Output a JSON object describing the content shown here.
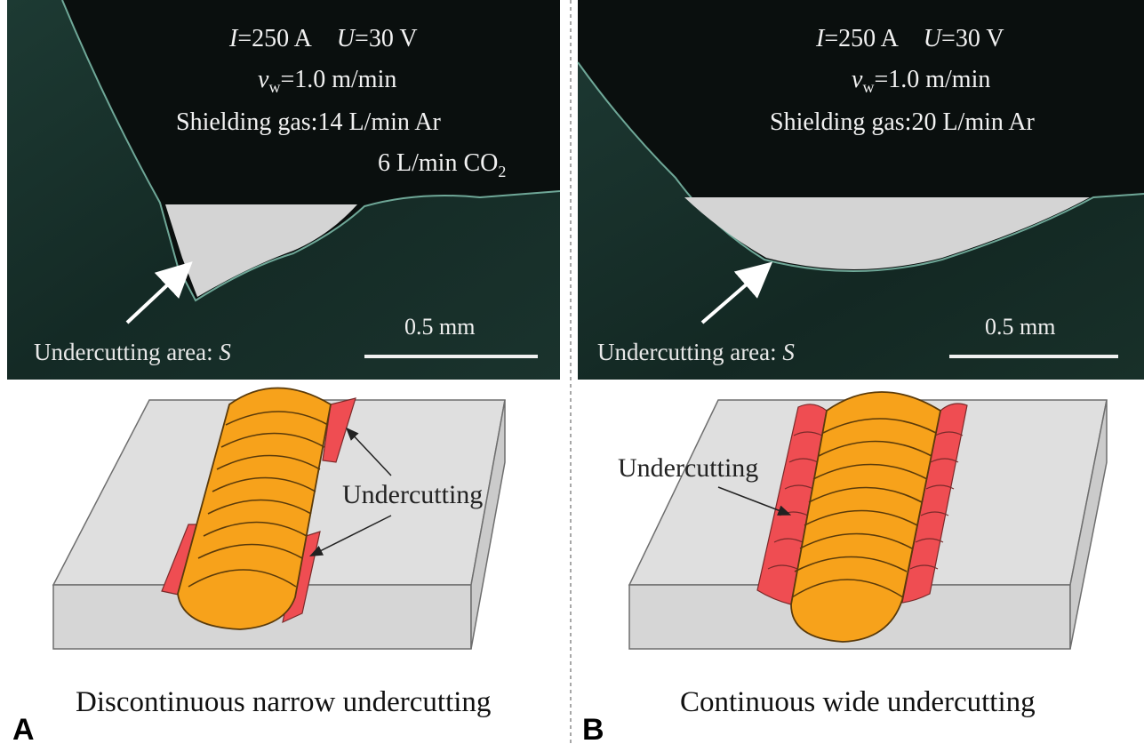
{
  "panels": [
    {
      "letter": "A",
      "params": {
        "current": "I=250 A",
        "current_symbol": "I",
        "current_value": "=250 A",
        "voltage_symbol": "U",
        "voltage_value": "=30 V",
        "speed_symbol": "v",
        "speed_sub": "w",
        "speed_value": "=1.0 m/min",
        "gas_line1": "Shielding gas:14 L/min Ar",
        "gas_line2_prefix": "6 L/min CO",
        "gas_line2_sub": "2"
      },
      "area_label_prefix": "Undercutting area: ",
      "area_label_symbol": "S",
      "scale_bar": "0.5 mm",
      "diagram_label": "Undercutting",
      "caption": "Discontinuous narrow undercutting"
    },
    {
      "letter": "B",
      "params": {
        "current_symbol": "I",
        "current_value": "=250 A",
        "voltage_symbol": "U",
        "voltage_value": "=30 V",
        "speed_symbol": "v",
        "speed_sub": "w",
        "speed_value": "=1.0 m/min",
        "gas_line1": "Shielding gas:20 L/min Ar"
      },
      "area_label_prefix": "Undercutting area: ",
      "area_label_symbol": "S",
      "scale_bar": "0.5 mm",
      "diagram_label": "Undercutting",
      "caption": "Continuous wide undercutting"
    }
  ],
  "colors": {
    "micrograph_bg": "#0b1210",
    "micrograph_metal": "#16302b",
    "undercut_area": "#d4d4d4",
    "plate": "#dedede",
    "weld_bead": "#f7a21b",
    "undercut": "#ef4d52"
  }
}
